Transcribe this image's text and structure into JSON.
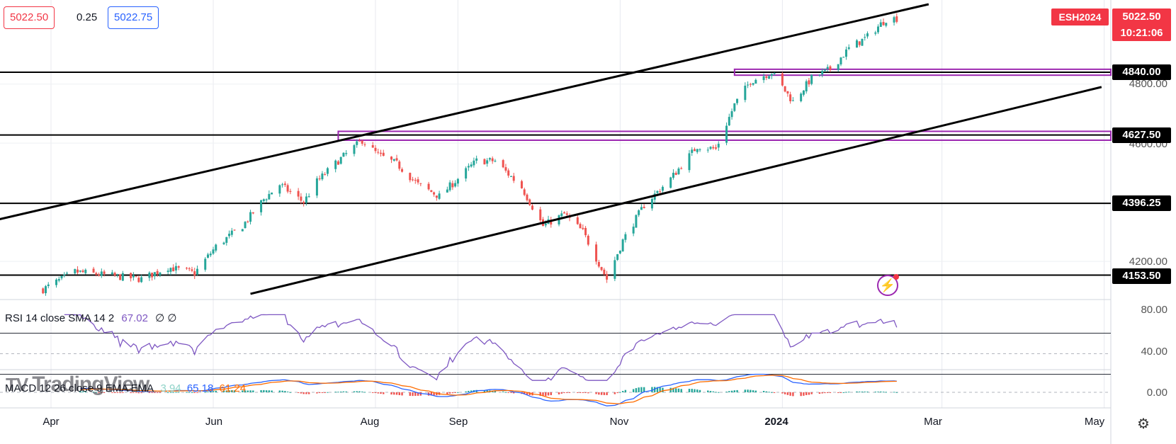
{
  "quote": {
    "sell": "5022.50",
    "spread": "0.25",
    "buy": "5022.75"
  },
  "symbol": {
    "ticker": "ESH2024",
    "price": "5022.50",
    "countdown": "10:21:06"
  },
  "price_axis": {
    "labels": [
      "4800.00",
      "4600.00",
      "4200.00"
    ]
  },
  "rsi": {
    "legend_name": "RSI 14 close SMA 14 2",
    "legend_value": "67.02",
    "legend_extra": "∅ ∅",
    "axis_labels": [
      "80.00",
      "40.00"
    ],
    "color": "#7e57c2"
  },
  "macd": {
    "legend_name": "MACD 12 26 close 9 EMA EMA",
    "hist_value": "3.94",
    "macd_value": "65.18",
    "signal_value": "61.24",
    "axis_label": "0.00",
    "macd_color": "#2962ff",
    "signal_color": "#ff6d00",
    "hist_pos_color": "#26a69a",
    "hist_neg_color": "#ef5350"
  },
  "watermark": {
    "text": "TradingView"
  },
  "chart_data": {
    "type": "candlestick",
    "instrument": "ESH2024",
    "x_ticks": [
      "Apr",
      "Jun",
      "Aug",
      "Sep",
      "Nov",
      "2024",
      "Mar",
      "May"
    ],
    "y_ticks": [
      4200,
      4600,
      4800
    ],
    "horizontal_levels": [
      {
        "value": 4840.0,
        "label": "4840.00"
      },
      {
        "value": 4627.5,
        "label": "4627.50"
      },
      {
        "value": 4396.25,
        "label": "4396.25"
      },
      {
        "value": 4153.5,
        "label": "4153.50"
      }
    ],
    "zones": [
      {
        "from": 4830,
        "to": 4850,
        "start": "2023-12-14",
        "color": "#9c27b0"
      },
      {
        "from": 4610,
        "to": 4640,
        "start": "2023-07-18",
        "color": "#9c27b0"
      }
    ],
    "trend_channel": [
      {
        "points": [
          [
            "2023-02-25",
            4310
          ],
          [
            "2024-02-25",
            5070
          ]
        ]
      },
      {
        "points": [
          [
            "2023-06-15",
            4090
          ],
          [
            "2024-04-30",
            4790
          ]
        ]
      }
    ],
    "close_path": [
      [
        "2023-03-29",
        4105
      ],
      [
        "2023-04-10",
        4165
      ],
      [
        "2023-04-25",
        4150
      ],
      [
        "2023-05-05",
        4140
      ],
      [
        "2023-05-15",
        4180
      ],
      [
        "2023-05-25",
        4160
      ],
      [
        "2023-06-02",
        4250
      ],
      [
        "2023-06-12",
        4320
      ],
      [
        "2023-06-20",
        4410
      ],
      [
        "2023-06-26",
        4460
      ],
      [
        "2023-07-05",
        4400
      ],
      [
        "2023-07-10",
        4470
      ],
      [
        "2023-07-18",
        4540
      ],
      [
        "2023-07-27",
        4610
      ],
      [
        "2023-08-02",
        4560
      ],
      [
        "2023-08-09",
        4530
      ],
      [
        "2023-08-17",
        4460
      ],
      [
        "2023-08-25",
        4420
      ],
      [
        "2023-09-01",
        4480
      ],
      [
        "2023-09-08",
        4540
      ],
      [
        "2023-09-15",
        4540
      ],
      [
        "2023-09-25",
        4450
      ],
      [
        "2023-10-03",
        4320
      ],
      [
        "2023-10-11",
        4360
      ],
      [
        "2023-10-18",
        4300
      ],
      [
        "2023-10-27",
        4140
      ],
      [
        "2023-11-02",
        4270
      ],
      [
        "2023-11-10",
        4390
      ],
      [
        "2023-11-20",
        4480
      ],
      [
        "2023-11-30",
        4590
      ],
      [
        "2023-12-07",
        4580
      ],
      [
        "2023-12-14",
        4730
      ],
      [
        "2023-12-20",
        4810
      ],
      [
        "2023-12-28",
        4840
      ],
      [
        "2024-01-05",
        4740
      ],
      [
        "2024-01-12",
        4820
      ],
      [
        "2024-01-19",
        4850
      ],
      [
        "2024-01-26",
        4920
      ],
      [
        "2024-02-02",
        4960
      ],
      [
        "2024-02-09",
        5020
      ],
      [
        "2024-02-13",
        5022.5
      ]
    ],
    "last_price": 5022.5
  }
}
